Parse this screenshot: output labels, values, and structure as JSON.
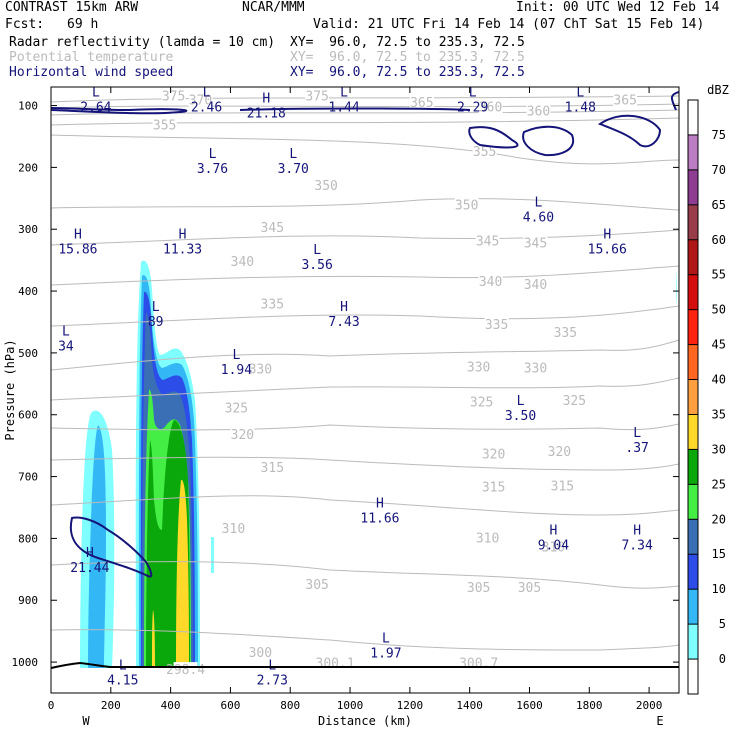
{
  "header": {
    "model": "CONTRAST 15km ARW",
    "org": "NCAR/MMM",
    "init": "Init: 00 UTC Wed 12 Feb 14",
    "fcst_label": "Fcst:",
    "fcst_value": "69 h",
    "valid": "Valid: 21 UTC Fri 14 Feb 14 (07 ChT Sat 15 Feb 14)",
    "fields": [
      {
        "name": "Radar reflectivity (lamda = 10 cm)",
        "xy": "XY=  96.0, 72.5 to 235.3, 72.5",
        "color": "#000000"
      },
      {
        "name": "Potential temperature",
        "xy": "XY=  96.0, 72.5 to 235.3, 72.5",
        "color": "#bbbbbb"
      },
      {
        "name": "Horizontal wind speed",
        "xy": "XY=  96.0, 72.5 to 235.3, 72.5",
        "color": "#141479"
      }
    ]
  },
  "chart_data": {
    "type": "heatmap",
    "xlabel": "Distance (km)",
    "ylabel": "Pressure (hPa)",
    "xlim": [
      0,
      2100
    ],
    "ylim": [
      1050,
      70
    ],
    "x_ticks": [
      0,
      200,
      400,
      600,
      800,
      1000,
      1200,
      1400,
      1600,
      1800,
      2000
    ],
    "y_ticks": [
      100,
      200,
      300,
      400,
      500,
      600,
      700,
      800,
      900,
      1000
    ],
    "x_end_labels": {
      "left": "W",
      "right": "E"
    },
    "colorbar": {
      "title": "dBZ",
      "levels": [
        0,
        5,
        10,
        15,
        20,
        25,
        30,
        35,
        40,
        45,
        50,
        55,
        60,
        65,
        70,
        75
      ],
      "colors": [
        "#ffffff",
        "#7fffff",
        "#33b8f5",
        "#2c4de8",
        "#3a6fb5",
        "#44ee44",
        "#0aa80a",
        "#ffd92a",
        "#ffa040",
        "#ff6622",
        "#ff2210",
        "#d40e0e",
        "#b01818",
        "#9a3d4a",
        "#8e3d92",
        "#bb7ec4",
        "#ffffff"
      ]
    },
    "theta_contours": [
      {
        "label": "355",
        "x": 380,
        "p": 132
      },
      {
        "label": "355",
        "x": 1450,
        "p": 175
      },
      {
        "label": "350",
        "x": 920,
        "p": 230
      },
      {
        "label": "350",
        "x": 1390,
        "p": 262
      },
      {
        "label": "345",
        "x": 740,
        "p": 298
      },
      {
        "label": "345",
        "x": 1460,
        "p": 320
      },
      {
        "label": "345",
        "x": 1620,
        "p": 323
      },
      {
        "label": "340",
        "x": 640,
        "p": 353
      },
      {
        "label": "340",
        "x": 1470,
        "p": 385
      },
      {
        "label": "340",
        "x": 1620,
        "p": 390
      },
      {
        "label": "335",
        "x": 740,
        "p": 422
      },
      {
        "label": "335",
        "x": 1490,
        "p": 455
      },
      {
        "label": "335",
        "x": 1720,
        "p": 468
      },
      {
        "label": "330",
        "x": 700,
        "p": 527
      },
      {
        "label": "330",
        "x": 1430,
        "p": 524
      },
      {
        "label": "330",
        "x": 1620,
        "p": 525
      },
      {
        "label": "325",
        "x": 620,
        "p": 590
      },
      {
        "label": "325",
        "x": 1440,
        "p": 580
      },
      {
        "label": "325",
        "x": 1750,
        "p": 578
      },
      {
        "label": "320",
        "x": 640,
        "p": 633
      },
      {
        "label": "320",
        "x": 1480,
        "p": 664
      },
      {
        "label": "320",
        "x": 1700,
        "p": 660
      },
      {
        "label": "315",
        "x": 740,
        "p": 686
      },
      {
        "label": "315",
        "x": 1480,
        "p": 718
      },
      {
        "label": "315",
        "x": 1710,
        "p": 716
      },
      {
        "label": "310",
        "x": 610,
        "p": 785
      },
      {
        "label": "310",
        "x": 1460,
        "p": 800
      },
      {
        "label": "310",
        "x": 1680,
        "p": 815
      },
      {
        "label": "305",
        "x": 890,
        "p": 875
      },
      {
        "label": "305",
        "x": 1430,
        "p": 880
      },
      {
        "label": "305",
        "x": 1600,
        "p": 880
      },
      {
        "label": "300",
        "x": 700,
        "p": 985
      },
      {
        "label": "300.1",
        "x": 950,
        "p": 1002
      },
      {
        "label": "300.7",
        "x": 1430,
        "p": 1002
      },
      {
        "label": "298.4",
        "x": 450,
        "p": 1013
      },
      {
        "label": "375",
        "x": 410,
        "p": 85
      },
      {
        "label": "375",
        "x": 890,
        "p": 85
      },
      {
        "label": "370",
        "x": 500,
        "p": 92
      },
      {
        "label": "365",
        "x": 1240,
        "p": 96
      },
      {
        "label": "360",
        "x": 1470,
        "p": 103
      },
      {
        "label": "360",
        "x": 1630,
        "p": 110
      },
      {
        "label": "365",
        "x": 1920,
        "p": 92
      }
    ],
    "wind_extrema": [
      {
        "type": "L",
        "value": "2.64",
        "x": 150,
        "p": 85
      },
      {
        "type": "L",
        "value": "2.46",
        "x": 520,
        "p": 85
      },
      {
        "type": "H",
        "value": "21.18",
        "x": 720,
        "p": 95
      },
      {
        "type": "L",
        "value": "1.44",
        "x": 980,
        "p": 85
      },
      {
        "type": "L",
        "value": "2.29",
        "x": 1410,
        "p": 85
      },
      {
        "type": "L",
        "value": "1.48",
        "x": 1770,
        "p": 85
      },
      {
        "type": "L",
        "value": "3.76",
        "x": 540,
        "p": 185
      },
      {
        "type": "L",
        "value": "3.70",
        "x": 810,
        "p": 185
      },
      {
        "type": "L",
        "value": "4.60",
        "x": 1630,
        "p": 263
      },
      {
        "type": "H",
        "value": "15.86",
        "x": 90,
        "p": 315
      },
      {
        "type": "H",
        "value": "11.33",
        "x": 440,
        "p": 315
      },
      {
        "type": "L",
        "value": "3.56",
        "x": 890,
        "p": 340
      },
      {
        "type": "H",
        "value": "15.66",
        "x": 1860,
        "p": 315
      },
      {
        "type": "H",
        "value": "7.43",
        "x": 980,
        "p": 432
      },
      {
        "type": "L",
        "value": "89",
        "x": 350,
        "p": 432
      },
      {
        "type": "L",
        "value": "34",
        "x": 50,
        "p": 472
      },
      {
        "type": "L",
        "value": "1.94",
        "x": 620,
        "p": 510
      },
      {
        "type": "L",
        "value": "3.50",
        "x": 1570,
        "p": 584
      },
      {
        "type": "L",
        "value": ".37",
        "x": 1960,
        "p": 636
      },
      {
        "type": "H",
        "value": "11.66",
        "x": 1100,
        "p": 750
      },
      {
        "type": "H",
        "value": "9.04",
        "x": 1680,
        "p": 794
      },
      {
        "type": "H",
        "value": "7.34",
        "x": 1960,
        "p": 794
      },
      {
        "type": "H",
        "value": "21.44",
        "x": 130,
        "p": 830
      },
      {
        "type": "L",
        "value": "1.97",
        "x": 1120,
        "p": 968
      },
      {
        "type": "L",
        "value": "4.15",
        "x": 240,
        "p": 1012
      },
      {
        "type": "L",
        "value": "2.73",
        "x": 740,
        "p": 1012
      }
    ]
  }
}
